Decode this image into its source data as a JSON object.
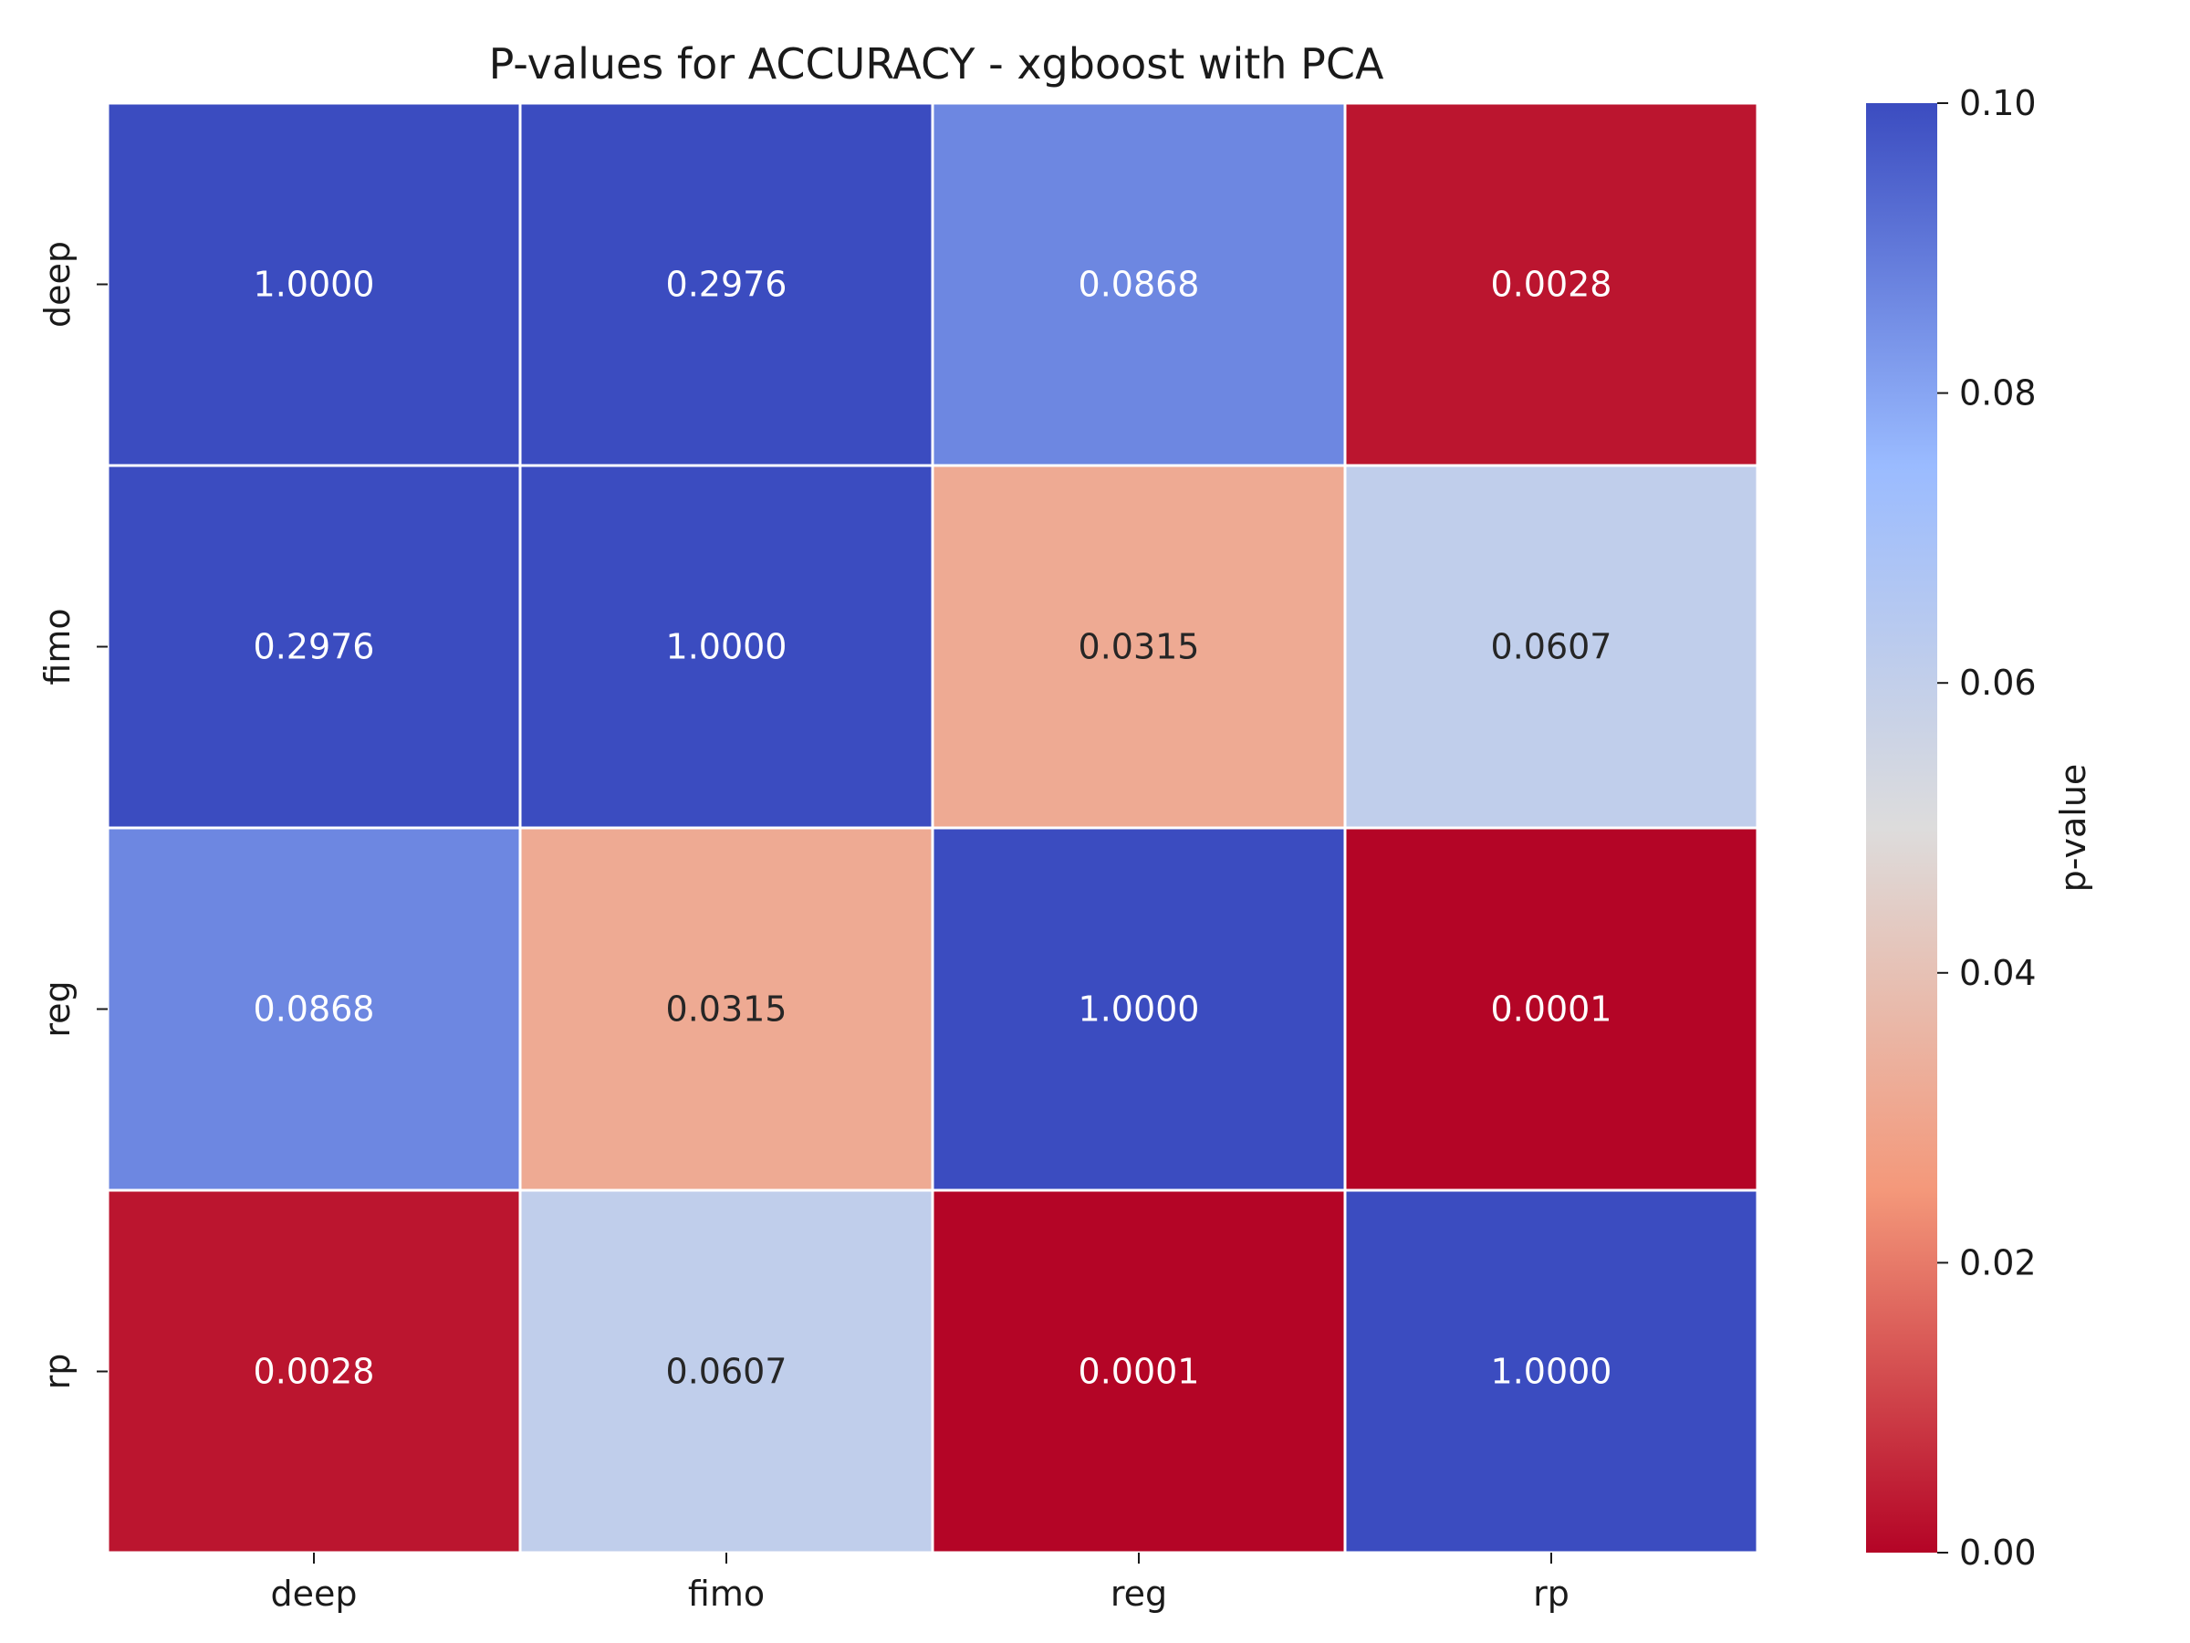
{
  "chart_data": {
    "type": "heatmap",
    "title": "P-values for ACCURACY - xgboost with PCA",
    "row_labels": [
      "deep",
      "fimo",
      "reg",
      "rp"
    ],
    "col_labels": [
      "deep",
      "fimo",
      "reg",
      "rp"
    ],
    "values": [
      [
        1.0,
        0.2976,
        0.0868,
        0.0028
      ],
      [
        0.2976,
        1.0,
        0.0315,
        0.0607
      ],
      [
        0.0868,
        0.0315,
        1.0,
        0.0001
      ],
      [
        0.0028,
        0.0607,
        0.0001,
        1.0
      ]
    ],
    "cell_text": [
      [
        "1.0000",
        "0.2976",
        "0.0868",
        "0.0028"
      ],
      [
        "0.2976",
        "1.0000",
        "0.0315",
        "0.0607"
      ],
      [
        "0.0868",
        "0.0315",
        "1.0000",
        "0.0001"
      ],
      [
        "0.0028",
        "0.0607",
        "0.0001",
        "1.0000"
      ]
    ],
    "colorbar": {
      "label": "p-value",
      "vmin": 0.0,
      "vmax": 0.1,
      "ticks": [
        0.0,
        0.02,
        0.04,
        0.06,
        0.08,
        0.1
      ],
      "tick_labels": [
        "0.00",
        "0.02",
        "0.04",
        "0.06",
        "0.08",
        "0.10"
      ],
      "colormap": "coolwarm_r",
      "color_stops": [
        "#b40426",
        "#f4987a",
        "#dddcdc",
        "#9abbff",
        "#3b4cc0"
      ]
    },
    "cell_border_color": "#ffffff",
    "text_dark_color": "#262626",
    "text_light_color": "#ffffff"
  }
}
